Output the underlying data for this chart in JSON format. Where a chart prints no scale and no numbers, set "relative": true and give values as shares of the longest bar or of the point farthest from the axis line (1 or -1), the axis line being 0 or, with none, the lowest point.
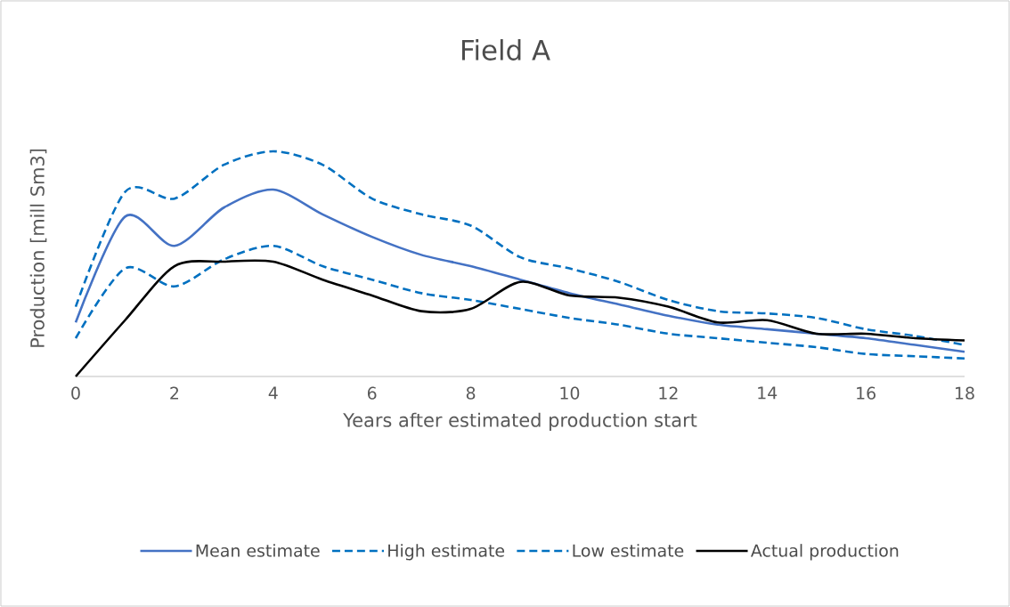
{
  "chart_data": {
    "type": "line",
    "title": "Field A",
    "xlabel": "Years after estimated production start",
    "ylabel": "Production [mill Sm3]",
    "relative": true,
    "x": [
      0,
      1,
      2,
      3,
      4,
      5,
      6,
      7,
      8,
      9,
      10,
      11,
      12,
      13,
      14,
      15,
      16,
      17,
      18
    ],
    "xlim": [
      0,
      18
    ],
    "xticks": [
      0,
      2,
      4,
      6,
      8,
      10,
      12,
      14,
      16,
      18
    ],
    "legend": "bottom",
    "marker": "none",
    "grid": false,
    "series": [
      {
        "name": "Mean estimate",
        "color": "#4472c4",
        "line_style": "solid",
        "values": [
          0.24,
          0.71,
          0.58,
          0.75,
          0.83,
          0.72,
          0.62,
          0.54,
          0.49,
          0.43,
          0.37,
          0.32,
          0.27,
          0.23,
          0.21,
          0.19,
          0.17,
          0.14,
          0.11
        ]
      },
      {
        "name": "High estimate",
        "color": "#0070c0",
        "line_style": "dashed",
        "values": [
          0.31,
          0.82,
          0.79,
          0.94,
          1.0,
          0.94,
          0.79,
          0.72,
          0.67,
          0.53,
          0.48,
          0.42,
          0.34,
          0.29,
          0.28,
          0.26,
          0.21,
          0.18,
          0.14
        ]
      },
      {
        "name": "Low estimate",
        "color": "#0070c0",
        "line_style": "dashed",
        "values": [
          0.17,
          0.48,
          0.4,
          0.52,
          0.58,
          0.49,
          0.43,
          0.37,
          0.34,
          0.3,
          0.26,
          0.23,
          0.19,
          0.17,
          0.15,
          0.13,
          0.1,
          0.09,
          0.08
        ]
      },
      {
        "name": "Actual production",
        "color": "#000000",
        "line_style": "solid",
        "values": [
          0.0,
          0.25,
          0.49,
          0.51,
          0.51,
          0.43,
          0.36,
          0.29,
          0.3,
          0.42,
          0.36,
          0.35,
          0.31,
          0.24,
          0.25,
          0.19,
          0.19,
          0.17,
          0.16
        ]
      }
    ]
  }
}
